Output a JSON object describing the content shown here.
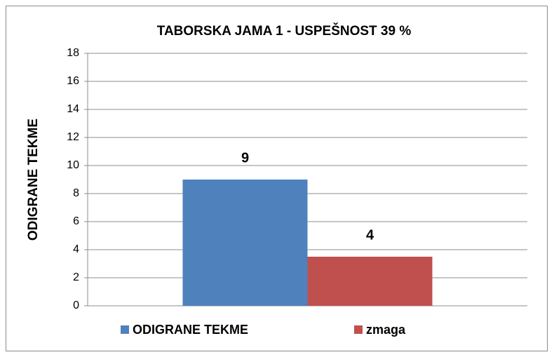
{
  "chart_data": {
    "type": "bar",
    "title": "TABORSKA JAMA 1 - USPEŠNOST 39 %",
    "y_label": "ODIGRANE  TEKME",
    "categories": [
      null
    ],
    "series": [
      {
        "name": "ODIGRANE TEKME",
        "color": "#4f81bd",
        "values": [
          9
        ]
      },
      {
        "name": "zmaga",
        "color": "#c0504d",
        "values": [
          3.5
        ],
        "value_labels": [
          "4"
        ]
      }
    ],
    "ylim": [
      0,
      18
    ],
    "yticks": [
      0,
      2,
      4,
      6,
      8,
      10,
      12,
      14,
      16,
      18
    ],
    "grid": true,
    "legend": "bottom"
  }
}
